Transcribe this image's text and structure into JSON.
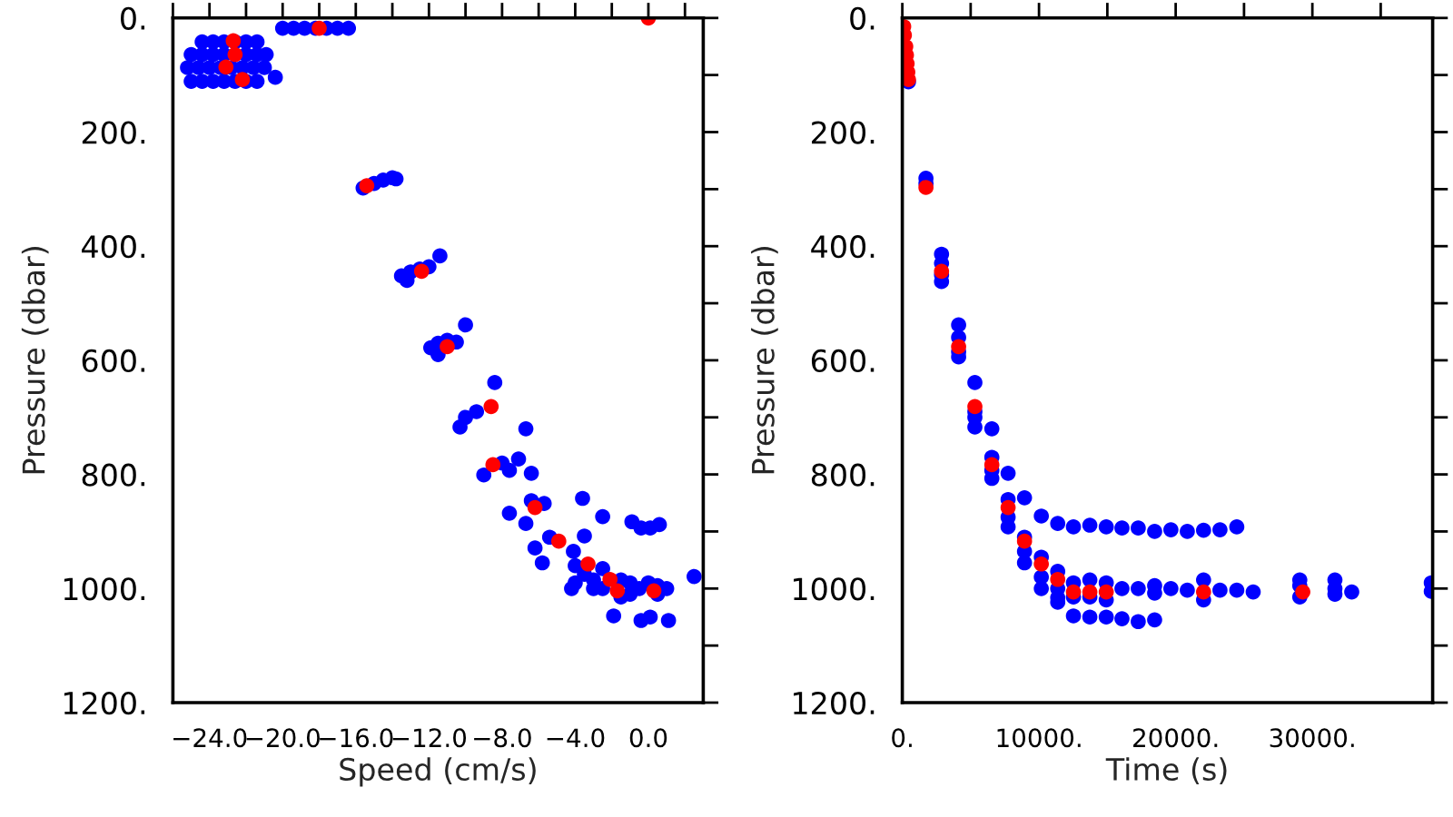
{
  "chart_data": [
    {
      "type": "scatter",
      "xlabel": "Speed (cm/s)",
      "ylabel": "Pressure (dbar)",
      "marker": "circle",
      "xlim": [
        -26,
        3
      ],
      "ylim": [
        1200,
        0
      ],
      "xticks": [
        {
          "value": -26,
          "label": null
        },
        {
          "value": -24,
          "label": "−24.0"
        },
        {
          "value": -22,
          "label": null
        },
        {
          "value": -20,
          "label": "−20.0"
        },
        {
          "value": -18,
          "label": null
        },
        {
          "value": -16,
          "label": "−16.0"
        },
        {
          "value": -14,
          "label": null
        },
        {
          "value": -12,
          "label": "−12.0"
        },
        {
          "value": -10,
          "label": null
        },
        {
          "value": -8,
          "label": "−8.0"
        },
        {
          "value": -6,
          "label": null
        },
        {
          "value": -4,
          "label": "−4.0"
        },
        {
          "value": -2,
          "label": null
        },
        {
          "value": 0,
          "label": "0.0"
        },
        {
          "value": 2,
          "label": null
        }
      ],
      "yticks": [
        {
          "value": 0,
          "label": "0."
        },
        {
          "value": 100,
          "label": null
        },
        {
          "value": 200,
          "label": "200."
        },
        {
          "value": 300,
          "label": null
        },
        {
          "value": 400,
          "label": "400."
        },
        {
          "value": 500,
          "label": null
        },
        {
          "value": 600,
          "label": "600."
        },
        {
          "value": 700,
          "label": null
        },
        {
          "value": 800,
          "label": "800."
        },
        {
          "value": 900,
          "label": null
        },
        {
          "value": 1000,
          "label": "1000."
        },
        {
          "value": 1100,
          "label": null
        },
        {
          "value": 1200,
          "label": "1200."
        }
      ],
      "series": [
        {
          "color": "#0000ff",
          "x": [
            -24.4,
            -23.8,
            -23.2,
            -22.6,
            -22.0,
            -21.4,
            -25.0,
            -24.4,
            -23.8,
            -23.2,
            -22.0,
            -21.4,
            -20.9,
            -25.2,
            -24.6,
            -24.0,
            -23.4,
            -22.8,
            -22.2,
            -21.6,
            -21.0,
            -25.0,
            -24.4,
            -23.8,
            -23.2,
            -22.6,
            -22.0,
            -21.4,
            -20.4,
            -20.0,
            -19.4,
            -18.8,
            -18.2,
            -17.6,
            -17.0,
            -16.4,
            -15.6,
            -15.0,
            -14.5,
            -14.0,
            -13.8,
            -13.5,
            -13.0,
            -12.5,
            -12.0,
            -13.2,
            -11.4,
            -11.9,
            -11.5,
            -11.0,
            -10.5,
            -11.5,
            -10.0,
            -8.4,
            -10.3,
            -10.0,
            -9.4,
            -6.7,
            -9.0,
            -8.0,
            -7.1,
            -6.4,
            -7.6,
            -7.6,
            -6.7,
            -5.7,
            -6.4,
            -3.6,
            -2.5,
            -6.2,
            -5.8,
            -5.4,
            -3.5,
            -4.1,
            -4.0,
            -4.0,
            -3.5,
            -3.0,
            -2.5,
            -2.5,
            -1.5,
            -1.0,
            -1.0,
            -0.5,
            0.0,
            0.5,
            0.5,
            1.0,
            -3.0,
            -4.2,
            -1.5,
            -1.9,
            -0.4,
            0.1,
            1.1,
            -0.9,
            -0.4,
            0.1,
            0.6,
            2.5
          ],
          "values": [
            42,
            42,
            42,
            42,
            42,
            42,
            64,
            64,
            64,
            64,
            64,
            64,
            64,
            87,
            87,
            87,
            87,
            87,
            87,
            87,
            87,
            111,
            111,
            111,
            111,
            111,
            111,
            111,
            104,
            18,
            18,
            18,
            18,
            18,
            18,
            18,
            298,
            290,
            284,
            280,
            282,
            452,
            445,
            440,
            436,
            460,
            417,
            578,
            570,
            565,
            568,
            590,
            538,
            639,
            717,
            700,
            690,
            720,
            801,
            780,
            773,
            798,
            793,
            868,
            886,
            851,
            846,
            842,
            874,
            929,
            955,
            910,
            908,
            935,
            960,
            990,
            975,
            985,
            965,
            1000,
            985,
            990,
            1010,
            1000,
            990,
            995,
            1010,
            1000,
            1000,
            1000,
            1015,
            1048,
            1056,
            1050,
            1056,
            883,
            894,
            894,
            888,
            979
          ]
        },
        {
          "color": "#ff0000",
          "x": [
            -22.7,
            -22.6,
            -23.1,
            -22.2,
            -18.0,
            0.0,
            -15.4,
            -12.4,
            -11.0,
            -8.6,
            -8.5,
            -6.2,
            -4.9,
            -3.3,
            -2.1,
            -1.7,
            0.0,
            0.3
          ],
          "values": [
            40,
            64,
            86,
            108,
            18,
            0,
            294,
            444,
            576,
            681,
            783,
            858,
            917,
            957,
            984,
            1004,
            null,
            1004
          ]
        }
      ]
    },
    {
      "type": "scatter",
      "xlabel": "Time (s)",
      "ylabel": "Pressure (dbar)",
      "marker": "circle",
      "xlim": [
        0,
        38800
      ],
      "ylim": [
        1200,
        0
      ],
      "xticks": [
        {
          "value": 0,
          "label": "0."
        },
        {
          "value": 5000,
          "label": null
        },
        {
          "value": 10000,
          "label": "10000."
        },
        {
          "value": 15000,
          "label": null
        },
        {
          "value": 20000,
          "label": "20000."
        },
        {
          "value": 25000,
          "label": null
        },
        {
          "value": 30000,
          "label": "30000."
        },
        {
          "value": 35000,
          "label": null
        }
      ],
      "yticks": [
        {
          "value": 0,
          "label": "0."
        },
        {
          "value": 100,
          "label": null
        },
        {
          "value": 200,
          "label": "200."
        },
        {
          "value": 300,
          "label": null
        },
        {
          "value": 400,
          "label": "400."
        },
        {
          "value": 500,
          "label": null
        },
        {
          "value": 600,
          "label": "600."
        },
        {
          "value": 700,
          "label": null
        },
        {
          "value": 800,
          "label": "800."
        },
        {
          "value": 900,
          "label": null
        },
        {
          "value": 1000,
          "label": "1000."
        },
        {
          "value": 1100,
          "label": null
        },
        {
          "value": 1200,
          "label": "1200."
        }
      ],
      "series": [
        {
          "color": "#0000ff",
          "x": [
            450,
            1730,
            1730,
            2870,
            2870,
            2870,
            2870,
            4120,
            4120,
            4120,
            4120,
            5310,
            5310,
            5310,
            5310,
            6550,
            6550,
            6550,
            6550,
            7740,
            7740,
            7740,
            7740,
            8940,
            8940,
            8940,
            8940,
            10170,
            10170,
            10170,
            10170,
            11370,
            11370,
            11370,
            11370,
            11370,
            12520,
            13720,
            14920,
            16070,
            17260,
            18460,
            19650,
            20850,
            22040,
            23240,
            24470,
            12520,
            12520,
            13720,
            13720,
            14920,
            14920,
            16070,
            17260,
            18460,
            18460,
            19650,
            20850,
            22040,
            22040,
            23240,
            24470,
            25670,
            29080,
            29080,
            29080,
            31650,
            31650,
            31650,
            32880,
            38700,
            38700,
            12520,
            13720,
            14920,
            16070,
            17260,
            18460
          ],
          "values": [
            112,
            281,
            290,
            414,
            430,
            450,
            462,
            538,
            560,
            585,
            594,
            639,
            690,
            700,
            717,
            720,
            770,
            793,
            807,
            798,
            844,
            875,
            892,
            841,
            910,
            935,
            955,
            873,
            945,
            980,
            1000,
            886,
            970,
            1000,
            1016,
            1024,
            892,
            889,
            892,
            894,
            894,
            900,
            897,
            900,
            898,
            897,
            892,
            990,
            1015,
            985,
            1015,
            990,
            1020,
            1000,
            1000,
            995,
            1008,
            1000,
            1003,
            985,
            1020,
            1003,
            1003,
            1006,
            985,
            995,
            1015,
            985,
            1000,
            1010,
            1006,
            990,
            1005,
            1048,
            1050,
            1050,
            1053,
            1058,
            1055
          ]
        },
        {
          "color": "#ff0000",
          "x": [
            100,
            150,
            250,
            300,
            350,
            400,
            450,
            1730,
            2870,
            4120,
            5310,
            6550,
            7740,
            8940,
            10170,
            11370,
            12520,
            13720,
            14920,
            22040,
            29300
          ],
          "values": [
            15,
            30,
            50,
            65,
            80,
            95,
            108,
            297,
            444,
            576,
            681,
            783,
            858,
            917,
            957,
            984,
            1006,
            1006,
            1006,
            1006,
            1006
          ]
        }
      ]
    }
  ]
}
